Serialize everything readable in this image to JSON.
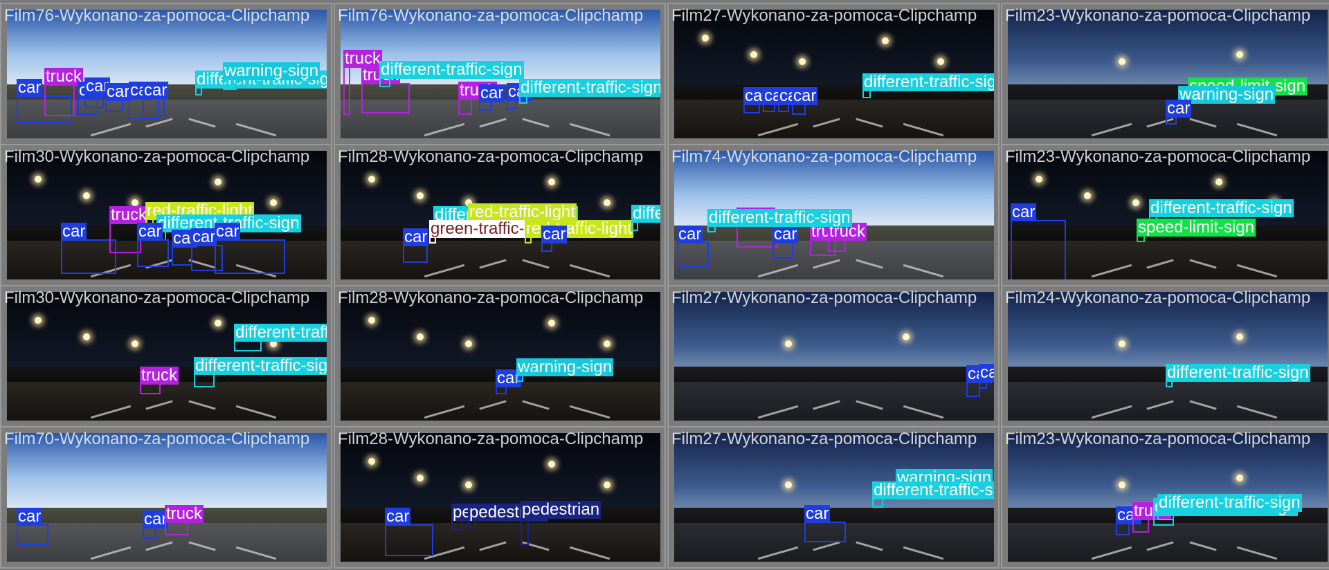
{
  "colors": {
    "car": "#1f3de0",
    "truck": "#b620e0",
    "different-traffic-sign": "#17d0e0",
    "warning-sign": "#15c8dc",
    "speed-limit-sign": "#14e04a",
    "red-traffic-light": "#c8e61e",
    "green-traffic-light": "#ffffff",
    "pedestrian": "#1a237e"
  },
  "tiles": [
    {
      "id": "r1c1",
      "title": "Film76-Wykonano-za-pomoca-Clipchamp",
      "scene": "day",
      "labels": [
        {
          "text": "car",
          "cls": "car"
        },
        {
          "text": "truck",
          "cls": "truck"
        },
        {
          "text": "car",
          "cls": "car"
        },
        {
          "text": "car",
          "cls": "car"
        },
        {
          "text": "car",
          "cls": "car"
        },
        {
          "text": "car",
          "cls": "car"
        },
        {
          "text": "car",
          "cls": "car"
        },
        {
          "text": "different-traffic-sign",
          "cls": "different-traffic-sign"
        },
        {
          "text": "warning-sign",
          "cls": "warning-sign"
        }
      ]
    },
    {
      "id": "r1c2",
      "title": "Film76-Wykonano-za-pomoca-Clipchamp",
      "scene": "day",
      "labels": [
        {
          "text": "truck",
          "cls": "truck"
        },
        {
          "text": "truck",
          "cls": "truck"
        },
        {
          "text": "different-traffic-sign",
          "cls": "different-traffic-sign"
        },
        {
          "text": "truck",
          "cls": "truck"
        },
        {
          "text": "car",
          "cls": "car"
        },
        {
          "text": "car",
          "cls": "car"
        },
        {
          "text": "different-traffic-sign",
          "cls": "different-traffic-sign"
        }
      ]
    },
    {
      "id": "r1c3",
      "title": "Film27-Wykonano-za-pomoca-Clipchamp",
      "scene": "night",
      "labels": [
        {
          "text": "car",
          "cls": "car"
        },
        {
          "text": "car",
          "cls": "car"
        },
        {
          "text": "car",
          "cls": "car"
        },
        {
          "text": "car",
          "cls": "car"
        },
        {
          "text": "different-traffic-sign",
          "cls": "different-traffic-sign"
        }
      ]
    },
    {
      "id": "r1c4",
      "title": "Film23-Wykonano-za-pomoca-Clipchamp",
      "scene": "dusk",
      "labels": [
        {
          "text": "speed-limit-sign",
          "cls": "speed-limit-sign"
        },
        {
          "text": "warning-sign",
          "cls": "warning-sign"
        },
        {
          "text": "car",
          "cls": "car"
        }
      ]
    },
    {
      "id": "r2c1",
      "title": "Film30-Wykonano-za-pomoca-Clipchamp",
      "scene": "night",
      "labels": [
        {
          "text": "car",
          "cls": "car"
        },
        {
          "text": "truck",
          "cls": "truck"
        },
        {
          "text": "red-traffic-light",
          "cls": "red-traffic-light"
        },
        {
          "text": "different-traffic-sign",
          "cls": "different-traffic-sign"
        },
        {
          "text": "car",
          "cls": "car"
        },
        {
          "text": "car",
          "cls": "car"
        },
        {
          "text": "car",
          "cls": "car"
        },
        {
          "text": "car",
          "cls": "car"
        }
      ]
    },
    {
      "id": "r2c2",
      "title": "Film28-Wykonano-za-pomoca-Clipchamp",
      "scene": "night",
      "labels": [
        {
          "text": "car",
          "cls": "car"
        },
        {
          "text": "different-traffic-sign",
          "cls": "different-traffic-sign"
        },
        {
          "text": "red-traffic-light",
          "cls": "red-traffic-light"
        },
        {
          "text": "green-traffic-light",
          "cls": "green-traffic-light"
        },
        {
          "text": "red-traffic-light",
          "cls": "red-traffic-light"
        },
        {
          "text": "car",
          "cls": "car"
        },
        {
          "text": "different-traffic-sign",
          "cls": "different-traffic-sign"
        }
      ]
    },
    {
      "id": "r2c3",
      "title": "Film74-Wykonano-za-pomoca-Clipchamp",
      "scene": "day",
      "labels": [
        {
          "text": "car",
          "cls": "car"
        },
        {
          "text": "truck",
          "cls": "truck"
        },
        {
          "text": "car",
          "cls": "car"
        },
        {
          "text": "truck",
          "cls": "truck"
        },
        {
          "text": "truck",
          "cls": "truck"
        },
        {
          "text": "different-traffic-sign",
          "cls": "different-traffic-sign"
        }
      ]
    },
    {
      "id": "r2c4",
      "title": "Film23-Wykonano-za-pomoca-Clipchamp",
      "scene": "night",
      "labels": [
        {
          "text": "car",
          "cls": "car"
        },
        {
          "text": "different-traffic-sign",
          "cls": "different-traffic-sign"
        },
        {
          "text": "speed-limit-sign",
          "cls": "speed-limit-sign"
        }
      ]
    },
    {
      "id": "r3c1",
      "title": "Film30-Wykonano-za-pomoca-Clipchamp",
      "scene": "night",
      "labels": [
        {
          "text": "different-traffic-sign",
          "cls": "different-traffic-sign"
        },
        {
          "text": "different-traffic-sign",
          "cls": "different-traffic-sign"
        },
        {
          "text": "truck",
          "cls": "truck"
        }
      ]
    },
    {
      "id": "r3c2",
      "title": "Film28-Wykonano-za-pomoca-Clipchamp",
      "scene": "night",
      "labels": [
        {
          "text": "car",
          "cls": "car"
        },
        {
          "text": "warning-sign",
          "cls": "warning-sign"
        }
      ]
    },
    {
      "id": "r3c3",
      "title": "Film27-Wykonano-za-pomoca-Clipchamp",
      "scene": "dusk",
      "labels": [
        {
          "text": "car",
          "cls": "car"
        },
        {
          "text": "car",
          "cls": "car"
        }
      ]
    },
    {
      "id": "r3c4",
      "title": "Film24-Wykonano-za-pomoca-Clipchamp",
      "scene": "dusk",
      "labels": [
        {
          "text": "different-traffic-sign",
          "cls": "different-traffic-sign"
        }
      ]
    },
    {
      "id": "r4c1",
      "title": "Film70-Wykonano-za-pomoca-Clipchamp",
      "scene": "day",
      "labels": [
        {
          "text": "car",
          "cls": "car"
        },
        {
          "text": "car",
          "cls": "car"
        },
        {
          "text": "truck",
          "cls": "truck"
        }
      ]
    },
    {
      "id": "r4c2",
      "title": "Film28-Wykonano-za-pomoca-Clipchamp",
      "scene": "night",
      "labels": [
        {
          "text": "car",
          "cls": "car"
        },
        {
          "text": "pedestrian",
          "cls": "pedestrian"
        },
        {
          "text": "pedestrian",
          "cls": "pedestrian"
        },
        {
          "text": "pedestrian",
          "cls": "pedestrian"
        }
      ]
    },
    {
      "id": "r4c3",
      "title": "Film27-Wykonano-za-pomoca-Clipchamp",
      "scene": "dusk",
      "labels": [
        {
          "text": "warning-sign",
          "cls": "warning-sign"
        },
        {
          "text": "different-traffic-sign",
          "cls": "different-traffic-sign"
        },
        {
          "text": "car",
          "cls": "car"
        }
      ]
    },
    {
      "id": "r4c4",
      "title": "Film23-Wykonano-za-pomoca-Clipchamp",
      "scene": "dusk",
      "labels": [
        {
          "text": "car",
          "cls": "car"
        },
        {
          "text": "truck",
          "cls": "truck"
        },
        {
          "text": "different-traffic-sign",
          "cls": "different-traffic-sign"
        },
        {
          "text": "different-traffic-sign",
          "cls": "different-traffic-sign"
        }
      ]
    }
  ]
}
